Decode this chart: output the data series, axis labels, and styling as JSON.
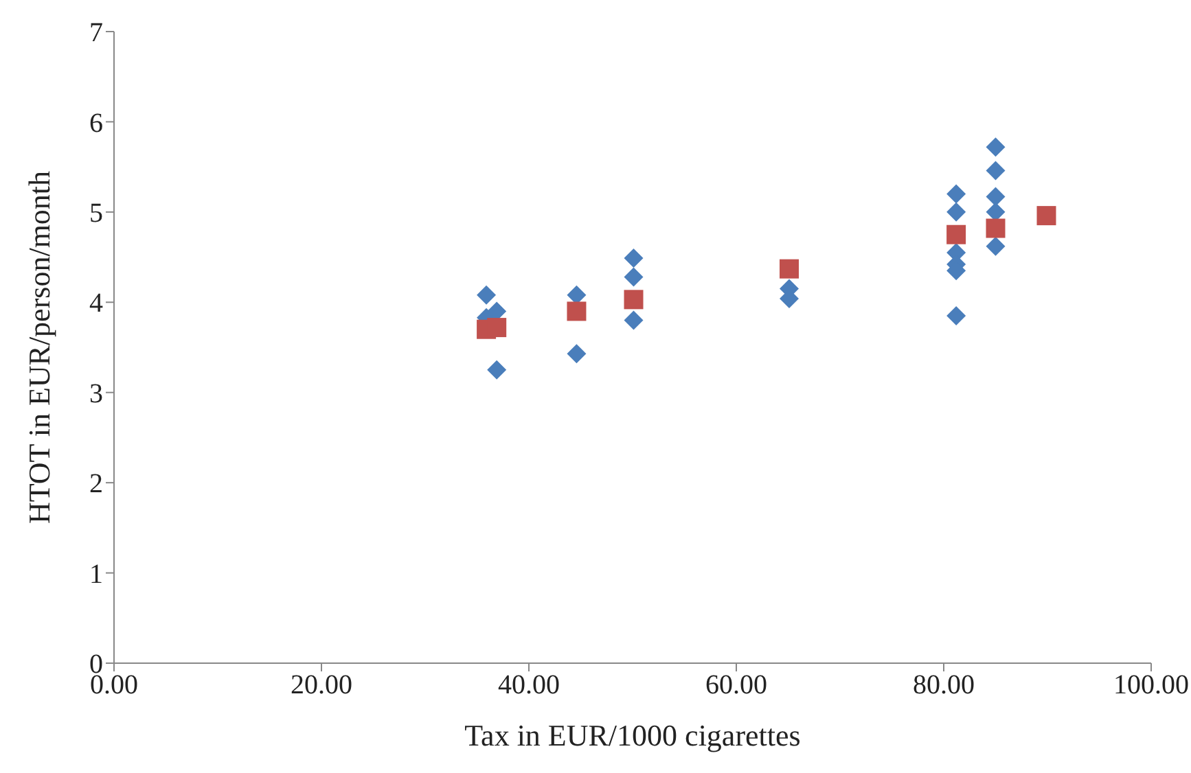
{
  "chart_data": {
    "type": "scatter",
    "xlabel": "Tax in EUR/1000 cigarettes",
    "ylabel": "HTOT in EUR/person/month",
    "xlim": [
      0,
      100
    ],
    "xticks": [
      {
        "value": 0,
        "label": "0.00"
      },
      {
        "value": 20,
        "label": "20.00"
      },
      {
        "value": 40,
        "label": "40.00"
      },
      {
        "value": 60,
        "label": "60.00"
      },
      {
        "value": 80,
        "label": "80.00"
      },
      {
        "value": 100,
        "label": "100.00"
      }
    ],
    "ylim": [
      0,
      7
    ],
    "yticks": [
      0,
      1,
      2,
      3,
      4,
      5,
      6,
      7
    ],
    "grid": false,
    "legend": false,
    "series": [
      {
        "color": "#4a7ebb",
        "marker": "diamond",
        "x": [
          35.9,
          35.9,
          36.9,
          36.9,
          44.6,
          44.6,
          50.1,
          50.1,
          50.1,
          65.1,
          65.1,
          81.2,
          81.2,
          81.2,
          81.2,
          81.2,
          81.2,
          85,
          85,
          85,
          85,
          85
        ],
        "values": [
          4.08,
          3.83,
          3.9,
          3.25,
          4.08,
          3.43,
          4.49,
          4.28,
          3.8,
          4.15,
          4.04,
          5.2,
          5.0,
          4.55,
          4.42,
          4.35,
          3.85,
          5.72,
          5.46,
          5.17,
          5.0,
          4.62
        ]
      },
      {
        "color": "#c0504d",
        "marker": "square",
        "x": [
          35.9,
          36.9,
          44.6,
          50.1,
          65.1,
          81.2,
          85,
          89.9
        ],
        "values": [
          3.7,
          3.72,
          3.9,
          4.03,
          4.37,
          4.75,
          4.82,
          4.96
        ]
      }
    ]
  }
}
